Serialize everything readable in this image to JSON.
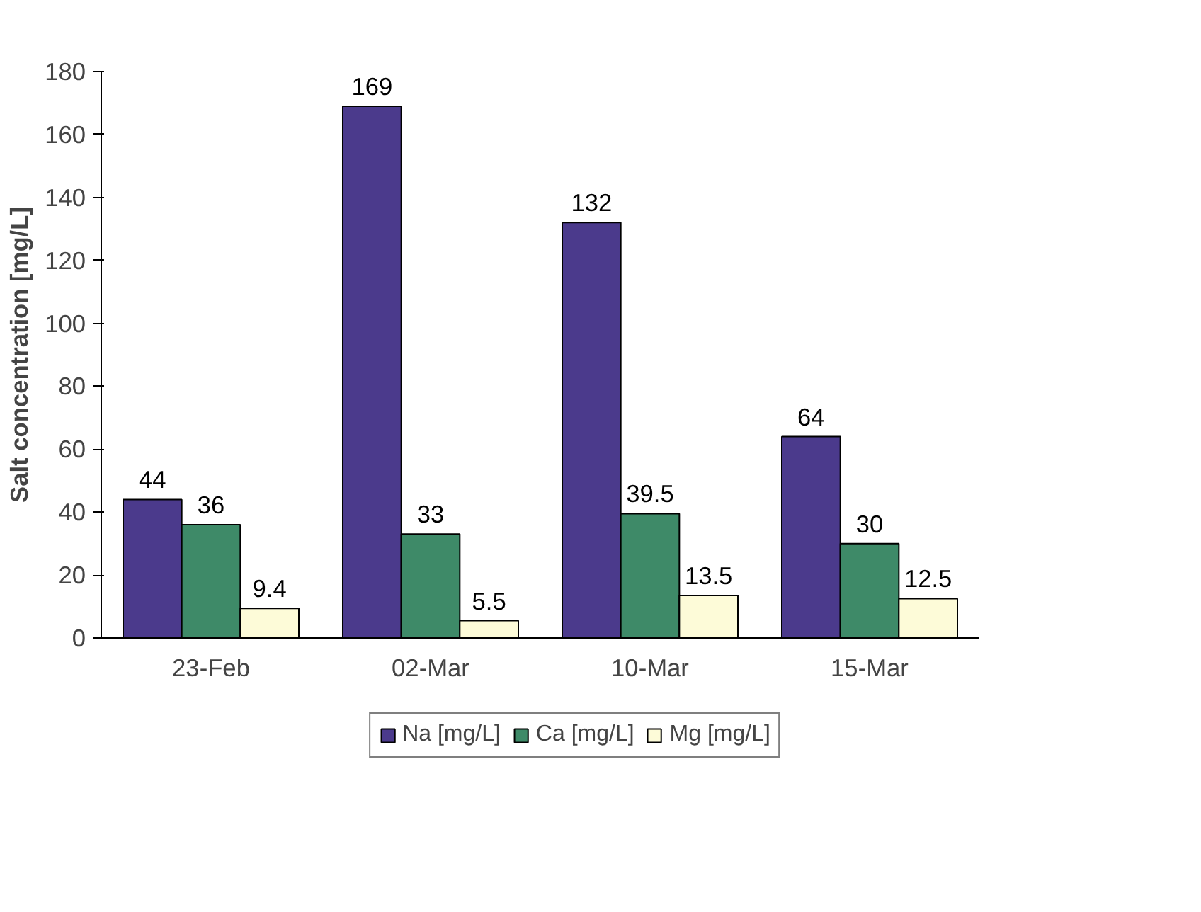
{
  "chart_data": {
    "type": "bar",
    "ylabel": "Salt concentration [mg/L]",
    "categories": [
      "23-Feb",
      "02-Mar",
      "10-Mar",
      "15-Mar"
    ],
    "series": [
      {
        "name": "Na [mg/L]",
        "color": "#4b3a8c",
        "values": [
          44,
          169,
          132,
          64
        ]
      },
      {
        "name": "Ca [mg/L]",
        "color": "#3e8a68",
        "values": [
          36,
          33,
          39.5,
          30
        ]
      },
      {
        "name": "Mg [mg/L]",
        "color": "#fdfbd8",
        "values": [
          9.4,
          5.5,
          13.5,
          12.5
        ]
      }
    ],
    "data_labels": true,
    "ylim": [
      0,
      180
    ],
    "yticks": [
      0,
      20,
      40,
      60,
      80,
      100,
      120,
      140,
      160,
      180
    ],
    "grid": false,
    "legend": "bottom"
  }
}
